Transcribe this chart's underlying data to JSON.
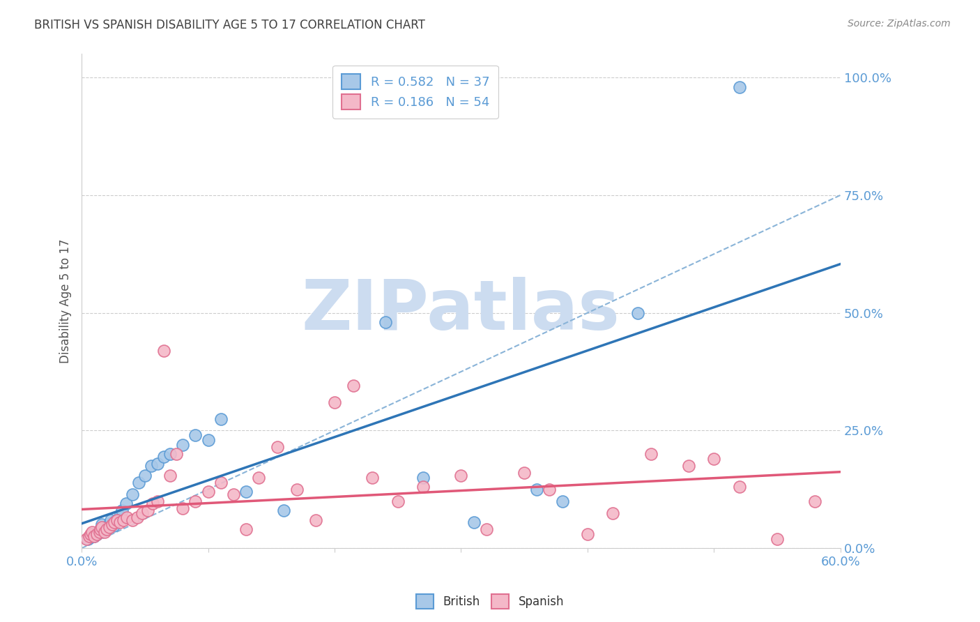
{
  "title": "BRITISH VS SPANISH DISABILITY AGE 5 TO 17 CORRELATION CHART",
  "source": "Source: ZipAtlas.com",
  "ylabel": "Disability Age 5 to 17",
  "ytick_labels": [
    "0.0%",
    "25.0%",
    "50.0%",
    "75.0%",
    "100.0%"
  ],
  "ytick_values": [
    0.0,
    0.25,
    0.5,
    0.75,
    1.0
  ],
  "xtick_show": [
    "0.0%",
    "60.0%"
  ],
  "xtick_positions": [
    0.0,
    0.1,
    0.2,
    0.3,
    0.4,
    0.5,
    0.6
  ],
  "xlim": [
    0.0,
    0.6
  ],
  "ylim": [
    0.0,
    1.05
  ],
  "british_color": "#a8c8e8",
  "british_edge_color": "#5b9bd5",
  "british_line_color": "#2e75b6",
  "spanish_color": "#f4b8c8",
  "spanish_edge_color": "#e07090",
  "spanish_line_color": "#e05878",
  "diagonal_line_color": "#8ab4d8",
  "R_british": 0.582,
  "N_british": 37,
  "R_spanish": 0.186,
  "N_spanish": 54,
  "british_x": [
    0.005,
    0.007,
    0.008,
    0.01,
    0.012,
    0.013,
    0.015,
    0.016,
    0.018,
    0.02,
    0.022,
    0.023,
    0.025,
    0.027,
    0.03,
    0.032,
    0.035,
    0.04,
    0.045,
    0.05,
    0.055,
    0.06,
    0.065,
    0.07,
    0.08,
    0.09,
    0.1,
    0.11,
    0.13,
    0.16,
    0.24,
    0.27,
    0.31,
    0.36,
    0.38,
    0.44,
    0.52
  ],
  "british_y": [
    0.02,
    0.025,
    0.03,
    0.025,
    0.03,
    0.035,
    0.04,
    0.05,
    0.038,
    0.045,
    0.052,
    0.06,
    0.048,
    0.058,
    0.068,
    0.08,
    0.095,
    0.115,
    0.14,
    0.155,
    0.175,
    0.18,
    0.195,
    0.2,
    0.22,
    0.24,
    0.23,
    0.275,
    0.12,
    0.08,
    0.48,
    0.15,
    0.055,
    0.125,
    0.1,
    0.5,
    0.98
  ],
  "spanish_x": [
    0.004,
    0.006,
    0.007,
    0.008,
    0.01,
    0.012,
    0.014,
    0.015,
    0.016,
    0.018,
    0.02,
    0.022,
    0.024,
    0.026,
    0.028,
    0.03,
    0.033,
    0.036,
    0.04,
    0.044,
    0.048,
    0.052,
    0.056,
    0.06,
    0.065,
    0.07,
    0.075,
    0.08,
    0.09,
    0.1,
    0.11,
    0.12,
    0.13,
    0.14,
    0.155,
    0.17,
    0.185,
    0.2,
    0.215,
    0.23,
    0.25,
    0.27,
    0.3,
    0.32,
    0.35,
    0.37,
    0.4,
    0.42,
    0.45,
    0.48,
    0.5,
    0.52,
    0.55,
    0.58
  ],
  "spanish_y": [
    0.02,
    0.025,
    0.03,
    0.035,
    0.025,
    0.03,
    0.035,
    0.04,
    0.045,
    0.035,
    0.04,
    0.045,
    0.05,
    0.055,
    0.06,
    0.055,
    0.06,
    0.065,
    0.06,
    0.065,
    0.075,
    0.08,
    0.095,
    0.1,
    0.42,
    0.155,
    0.2,
    0.085,
    0.1,
    0.12,
    0.14,
    0.115,
    0.04,
    0.15,
    0.215,
    0.125,
    0.06,
    0.31,
    0.345,
    0.15,
    0.1,
    0.13,
    0.155,
    0.04,
    0.16,
    0.125,
    0.03,
    0.075,
    0.2,
    0.175,
    0.19,
    0.13,
    0.02,
    0.1
  ],
  "background_color": "#ffffff",
  "grid_color": "#cccccc",
  "title_color": "#404040",
  "axis_label_color": "#5b9bd5",
  "watermark_color": "#ccdcf0",
  "watermark_text": "ZIPatlas"
}
